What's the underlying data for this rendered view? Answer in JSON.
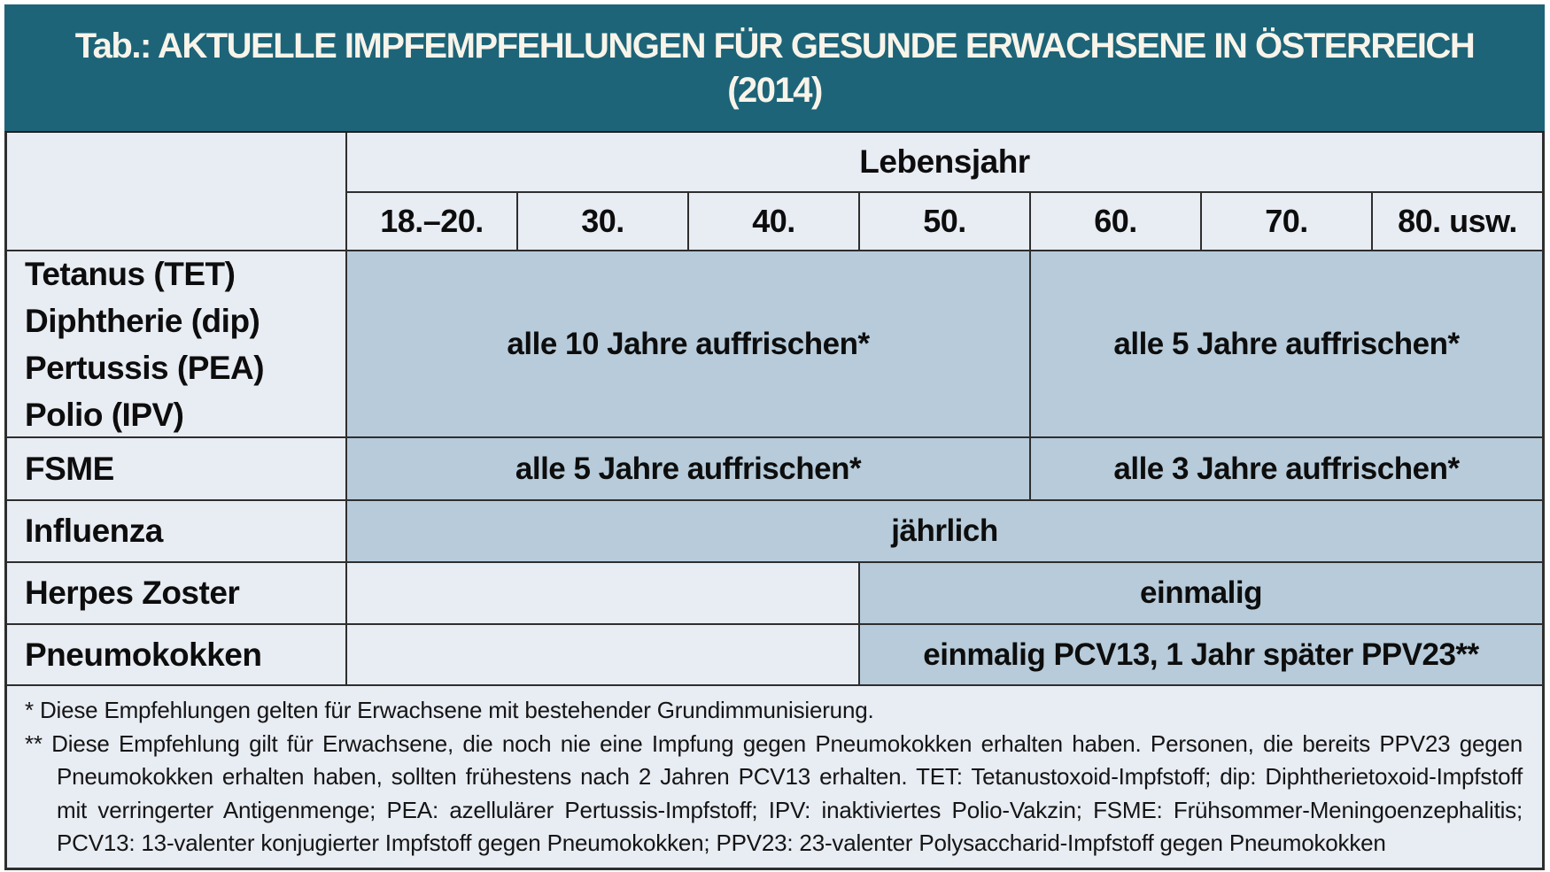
{
  "title": {
    "line1": "Tab.: AKTUELLE IMPFEMPFEHLUNGEN FÜR GESUNDE ERWACHSENE IN ÖSTERREICH",
    "line2": "(2014)"
  },
  "table": {
    "column_group_header": "Lebensjahr",
    "age_columns": [
      "18.–20.",
      "30.",
      "40.",
      "50.",
      "60.",
      "70.",
      "80. usw."
    ],
    "rows": [
      {
        "label_lines": [
          "Tetanus (TET)",
          "Diphtherie (dip)",
          "Pertussis (PEA)",
          "Polio (IPV)"
        ],
        "cells": [
          {
            "text": "alle 10 Jahre auffrischen*"
          },
          {
            "text": "alle 5 Jahre auffrischen*"
          }
        ]
      },
      {
        "label": "FSME",
        "cells": [
          {
            "text": "alle 5 Jahre auffrischen*"
          },
          {
            "text": "alle 3 Jahre auffrischen*"
          }
        ]
      },
      {
        "label": "Influenza",
        "cells": [
          {
            "text": "jährlich"
          }
        ]
      },
      {
        "label": "Herpes Zoster",
        "cells": [
          {
            "text": ""
          },
          {
            "text": "einmalig"
          }
        ]
      },
      {
        "label": "Pneumokokken",
        "cells": [
          {
            "text": ""
          },
          {
            "text": "einmalig PCV13, 1 Jahr später PPV23**"
          }
        ]
      }
    ]
  },
  "footnotes": {
    "note1": "* Diese Empfehlungen gelten für Erwachsene mit bestehender Grundimmunisierung.",
    "note2": "** Diese Empfehlung gilt für Erwachsene, die noch nie eine Impfung gegen Pneumokokken erhalten haben. Personen, die bereits PPV23 gegen Pneumokokken erhalten haben, sollten frühestens nach 2 Jahren PCV13 erhalten. TET: Tetanustoxoid-Impfstoff; dip: Diphtherietoxoid-Impfstoff mit verringerter Antigenmenge; PEA: azellulärer Pertussis-Impfstoff; IPV: inaktiviertes Polio-Vakzin; FSME: Frühsommer-Meningoenzephalitis; PCV13: 13-valenter konjugierter Impfstoff gegen Pneumokokken; PPV23: 23-valenter Polysaccharid-Impfstoff gegen Pneumokokken"
  },
  "colors": {
    "header_teal": "#1d6478",
    "title_text": "#f8f4ea",
    "cell_light": "#e8ecf3",
    "cell_filled": "#b7cbda",
    "grid_line": "#2e2e2e"
  }
}
